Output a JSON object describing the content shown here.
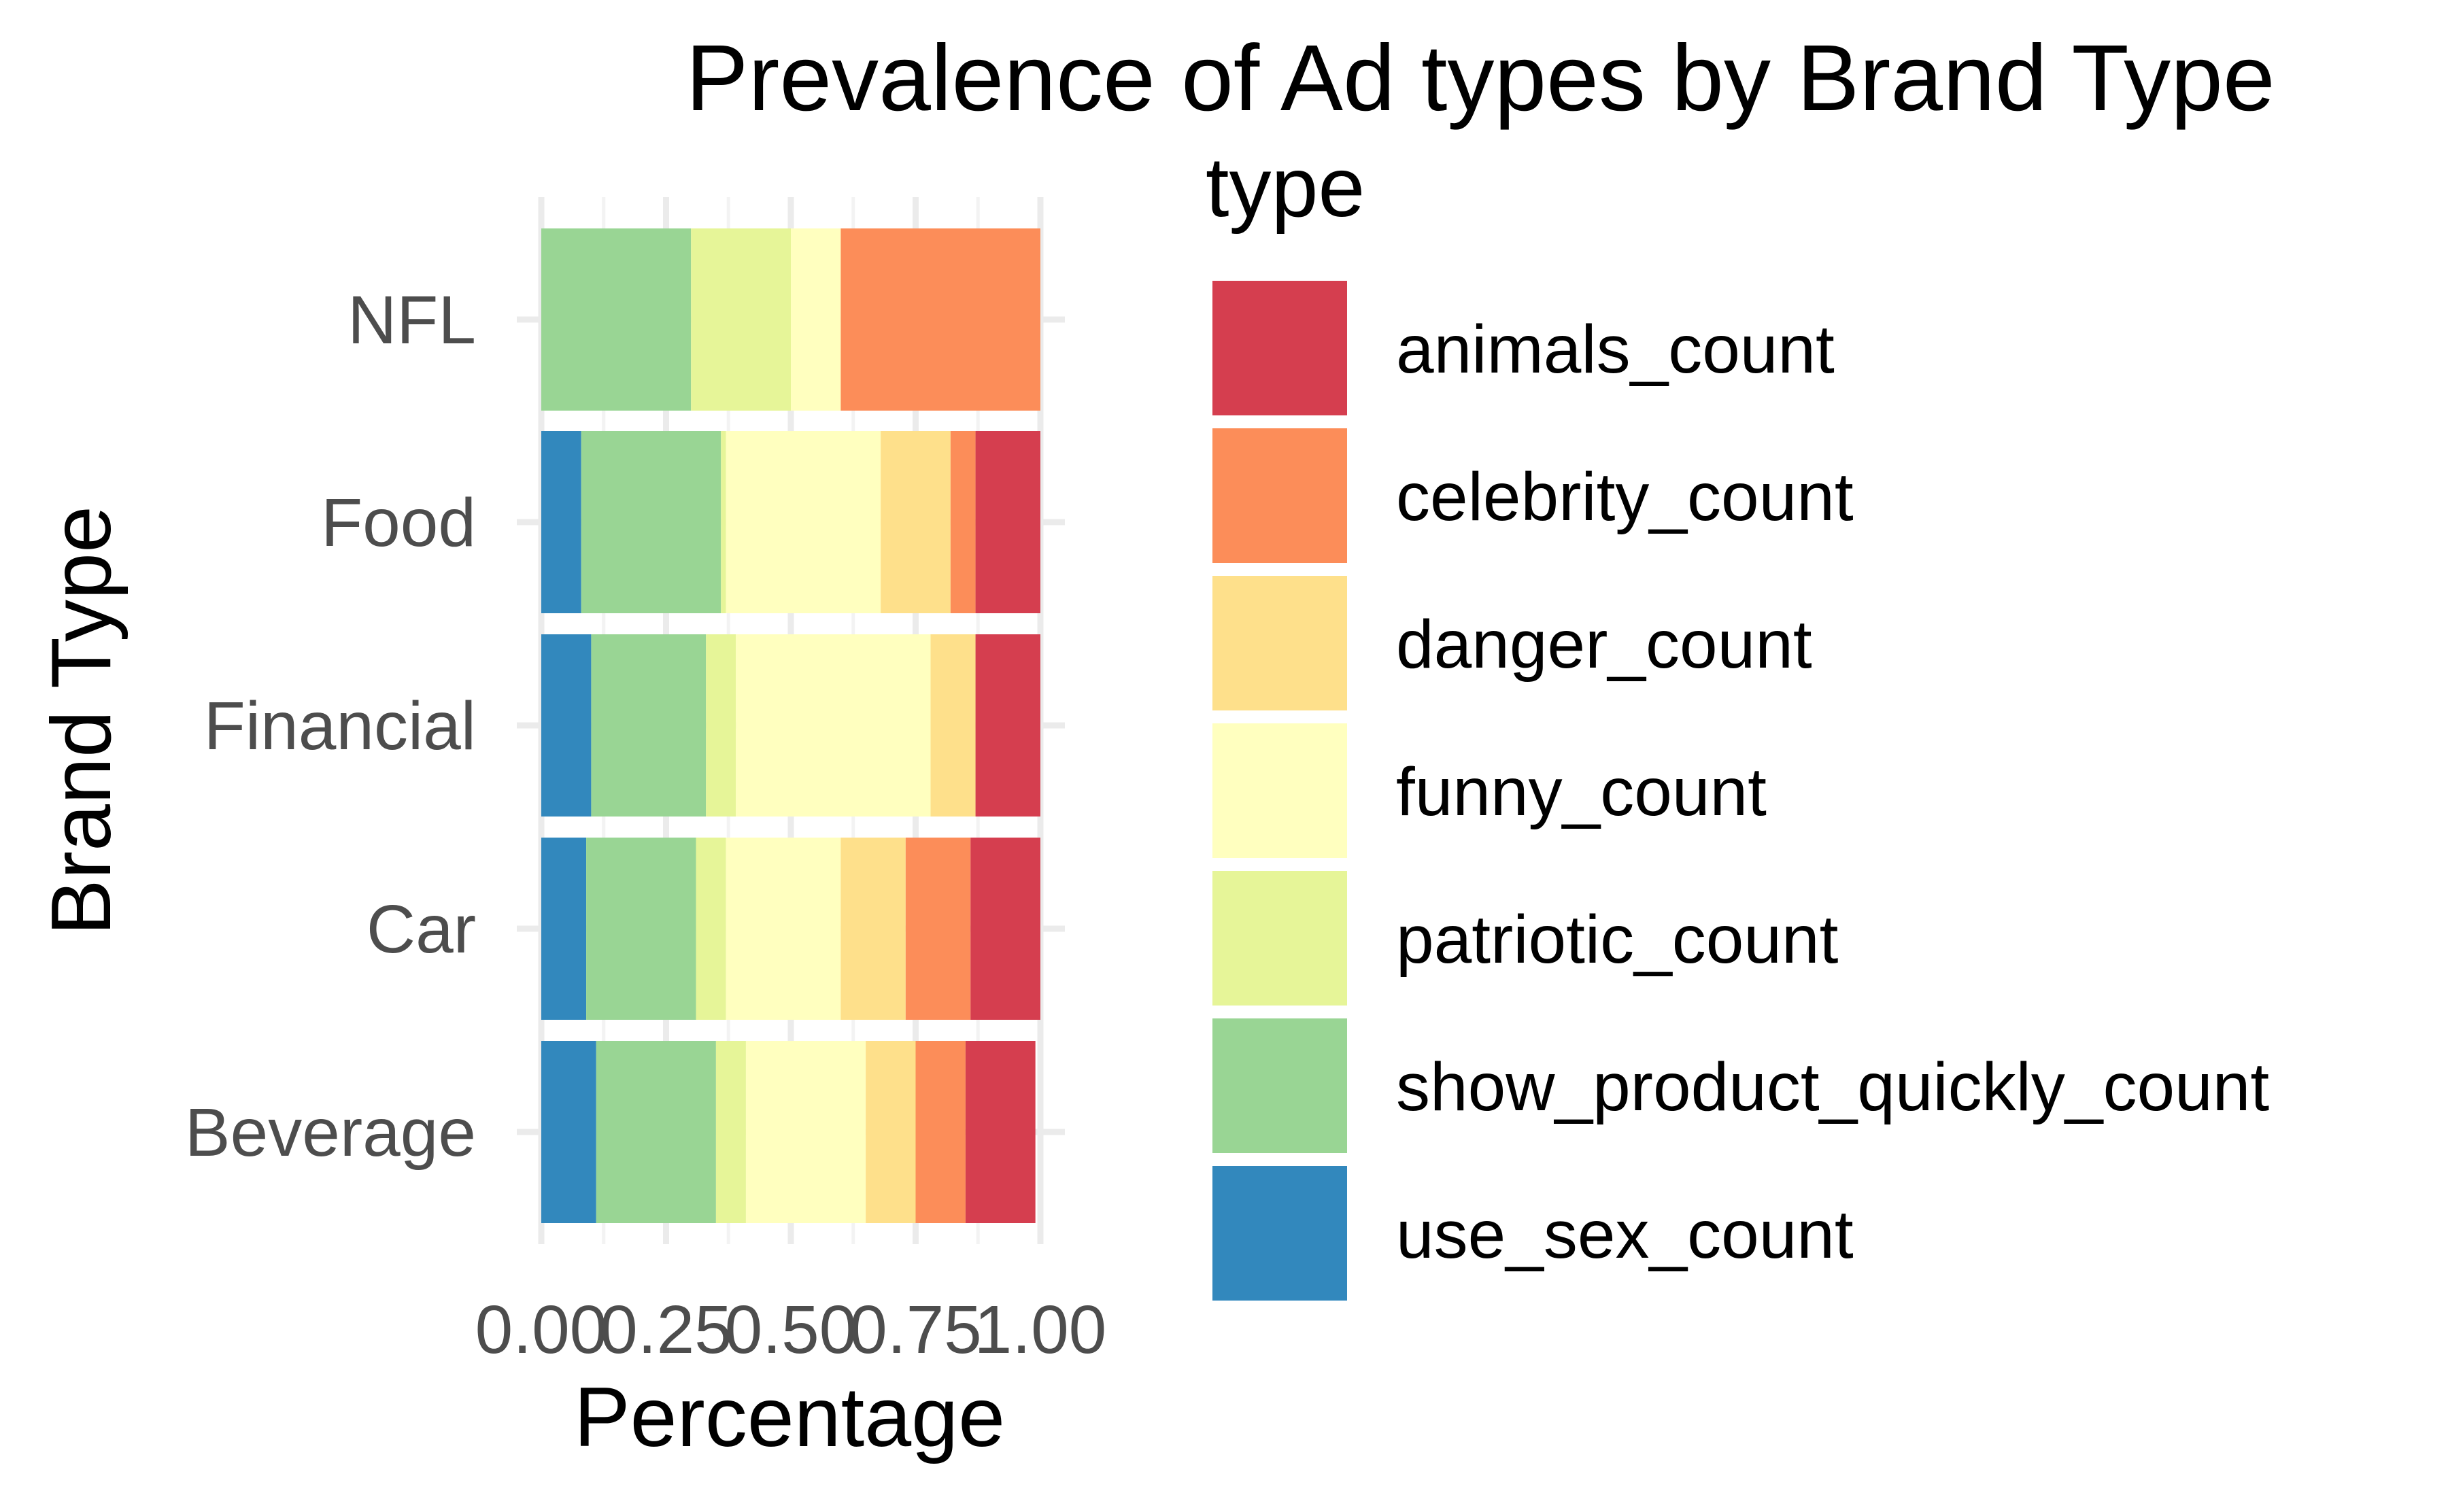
{
  "chart_data": {
    "type": "bar",
    "orientation": "horizontal",
    "stacked": "fill",
    "title": "Prevalence of Ad types by Brand Type",
    "xlabel": "Percentage",
    "ylabel": "Brand Type",
    "xlim": [
      0,
      1
    ],
    "x_ticks": [
      "0.00",
      "0.25",
      "0.50",
      "0.75",
      "1.00"
    ],
    "grid": true,
    "legend_title": "type",
    "legend_position": "right",
    "categories": [
      "NFL",
      "Food",
      "Financial",
      "Car",
      "Beverage"
    ],
    "series": [
      {
        "name": "use_sex_count",
        "color": "#3288BD",
        "values": [
          0.0,
          0.08,
          0.1,
          0.09,
          0.11
        ]
      },
      {
        "name": "show_product_quickly_count",
        "color": "#99D594",
        "values": [
          0.3,
          0.28,
          0.23,
          0.22,
          0.24
        ]
      },
      {
        "name": "patriotic_count",
        "color": "#E6F598",
        "values": [
          0.2,
          0.01,
          0.06,
          0.06,
          0.06
        ]
      },
      {
        "name": "funny_count",
        "color": "#FFFFBF",
        "values": [
          0.1,
          0.31,
          0.39,
          0.23,
          0.24
        ]
      },
      {
        "name": "danger_count",
        "color": "#FEE08B",
        "values": [
          0.0,
          0.14,
          0.09,
          0.13,
          0.1
        ]
      },
      {
        "name": "celebrity_count",
        "color": "#FC8D59",
        "values": [
          0.4,
          0.05,
          0.0,
          0.13,
          0.1
        ]
      },
      {
        "name": "animals_count",
        "color": "#D53E4F",
        "values": [
          0.0,
          0.13,
          0.13,
          0.14,
          0.14
        ]
      }
    ]
  }
}
